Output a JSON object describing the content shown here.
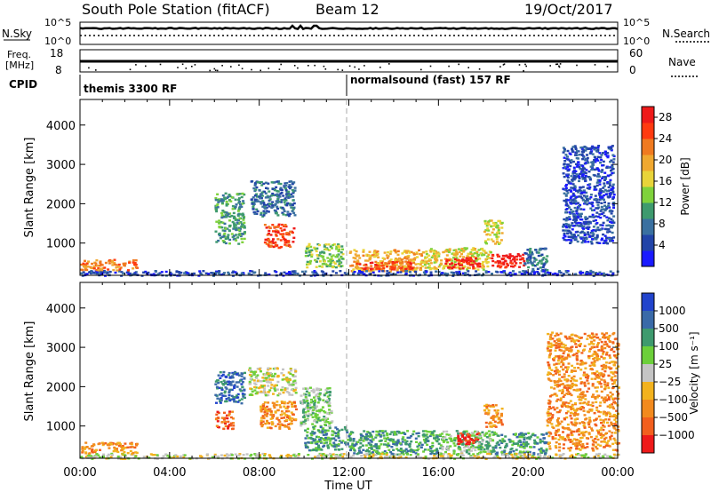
{
  "header": {
    "station": "South Pole Station (fitACF)",
    "beam": "Beam 12",
    "date": "19/Oct/2017"
  },
  "strip_labels": {
    "nsky": "N.Sky",
    "nsky_ticks": [
      "10^5",
      "10^0"
    ],
    "nsearch": "N.Search",
    "nsearch_ticks": [
      "10^5",
      "10^0"
    ],
    "freq_line1": "Freq.",
    "freq_line2": "[MHz]",
    "freq_ticks": [
      "18",
      "8"
    ],
    "nave": "Nave",
    "nave_ticks": [
      "60",
      "0"
    ],
    "cpid": "CPID"
  },
  "cpid_segments": [
    {
      "label": "themis 3300 RF",
      "start_hour": 0
    },
    {
      "label": "normalsound (fast) 157 RF",
      "start_hour": 12
    }
  ],
  "colors": {
    "power_scale": [
      "#1a1aff",
      "#2244a8",
      "#3a70a0",
      "#3e9a6e",
      "#7fd23c",
      "#e8d43a",
      "#f0a830",
      "#f07a20",
      "#ff3a10",
      "#ee1a1a"
    ],
    "velocity_scale": [
      "#2244cc",
      "#3a6aa8",
      "#3e9a6e",
      "#6ccf3a",
      "#c4c4c4",
      "#f2b21e",
      "#f28a1e",
      "#f25f1e",
      "#ee1a1a"
    ]
  },
  "chart_data": [
    {
      "type": "heatmap",
      "name": "power",
      "xlabel": "Time UT",
      "ylabel": "Slant Range [km]",
      "xlim": [
        0,
        24
      ],
      "ylim": [
        180,
        4650
      ],
      "x_tick_labels": [
        "00:00",
        "04:00",
        "08:00",
        "12:00",
        "16:00",
        "20:00",
        "00:00"
      ],
      "y_ticks": [
        1000,
        2000,
        3000,
        4000
      ],
      "colorbar_label": "Power [dB]",
      "colorbar_ticks": [
        "4",
        "8",
        "12",
        "16",
        "20",
        "24",
        "28"
      ],
      "colorbar_range": [
        0,
        30
      ],
      "regions": [
        {
          "t0": 6.0,
          "t1": 7.3,
          "r0": 1000,
          "r1": 2300,
          "level": 3
        },
        {
          "t0": 7.6,
          "t1": 9.6,
          "r0": 1700,
          "r1": 2600,
          "level": 2
        },
        {
          "t0": 8.2,
          "t1": 9.5,
          "r0": 900,
          "r1": 1500,
          "level": 8
        },
        {
          "t0": 10.0,
          "t1": 11.7,
          "r0": 400,
          "r1": 1000,
          "level": 4
        },
        {
          "t0": 12.0,
          "t1": 15.3,
          "r0": 300,
          "r1": 850,
          "level": 6
        },
        {
          "t0": 12.3,
          "t1": 14.8,
          "r0": 350,
          "r1": 550,
          "level": 8
        },
        {
          "t0": 15.3,
          "t1": 18.3,
          "r0": 350,
          "r1": 900,
          "level": 5
        },
        {
          "t0": 16.2,
          "t1": 17.8,
          "r0": 380,
          "r1": 650,
          "level": 9
        },
        {
          "t0": 18.3,
          "t1": 19.8,
          "r0": 400,
          "r1": 750,
          "level": 9
        },
        {
          "t0": 18.0,
          "t1": 18.8,
          "r0": 1000,
          "r1": 1600,
          "level": 5
        },
        {
          "t0": 19.8,
          "t1": 20.8,
          "r0": 300,
          "r1": 900,
          "level": 2
        },
        {
          "t0": 0.0,
          "t1": 24.0,
          "r0": 190,
          "r1": 320,
          "level": 1
        },
        {
          "t0": 0.0,
          "t1": 2.5,
          "r0": 330,
          "r1": 600,
          "level": 7
        },
        {
          "t0": 21.5,
          "t1": 23.8,
          "r0": 1000,
          "r1": 3500,
          "level": 1
        }
      ]
    },
    {
      "type": "heatmap",
      "name": "velocity",
      "xlabel": "Time UT",
      "ylabel": "Slant Range [km]",
      "xlim": [
        0,
        24
      ],
      "ylim": [
        180,
        4650
      ],
      "x_tick_labels": [
        "00:00",
        "04:00",
        "08:00",
        "12:00",
        "16:00",
        "20:00",
        "00:00"
      ],
      "y_ticks": [
        1000,
        2000,
        3000,
        4000
      ],
      "colorbar_label": "Velocity [m s⁻¹]",
      "colorbar_ticks": [
        "1000",
        "500",
        "100",
        "25",
        "−25",
        "−100",
        "−500",
        "−1000"
      ],
      "regions": [
        {
          "t0": 6.0,
          "t1": 7.3,
          "r0": 1600,
          "r1": 2400,
          "level": 1
        },
        {
          "t0": 6.0,
          "t1": 6.8,
          "r0": 950,
          "r1": 1400,
          "level": 7
        },
        {
          "t0": 7.5,
          "t1": 9.6,
          "r0": 1800,
          "r1": 2500,
          "level": 4
        },
        {
          "t0": 8.0,
          "t1": 9.6,
          "r0": 950,
          "r1": 1650,
          "level": 6
        },
        {
          "t0": 9.8,
          "t1": 11.2,
          "r0": 1000,
          "r1": 2000,
          "level": 3
        },
        {
          "t0": 10.0,
          "t1": 12.0,
          "r0": 400,
          "r1": 1000,
          "level": 2
        },
        {
          "t0": 12.0,
          "t1": 16.0,
          "r0": 300,
          "r1": 900,
          "level": 2
        },
        {
          "t0": 16.0,
          "t1": 18.5,
          "r0": 300,
          "r1": 900,
          "level": 3
        },
        {
          "t0": 16.8,
          "t1": 17.8,
          "r0": 550,
          "r1": 850,
          "level": 8
        },
        {
          "t0": 18.5,
          "t1": 20.8,
          "r0": 300,
          "r1": 850,
          "level": 2
        },
        {
          "t0": 18.0,
          "t1": 18.8,
          "r0": 1000,
          "r1": 1600,
          "level": 6
        },
        {
          "t0": 0.0,
          "t1": 24.0,
          "r0": 190,
          "r1": 320,
          "level": 4
        },
        {
          "t0": 0.0,
          "t1": 2.5,
          "r0": 330,
          "r1": 600,
          "level": 6
        },
        {
          "t0": 20.8,
          "t1": 24.0,
          "r0": 400,
          "r1": 3400,
          "level": 6
        }
      ]
    }
  ]
}
